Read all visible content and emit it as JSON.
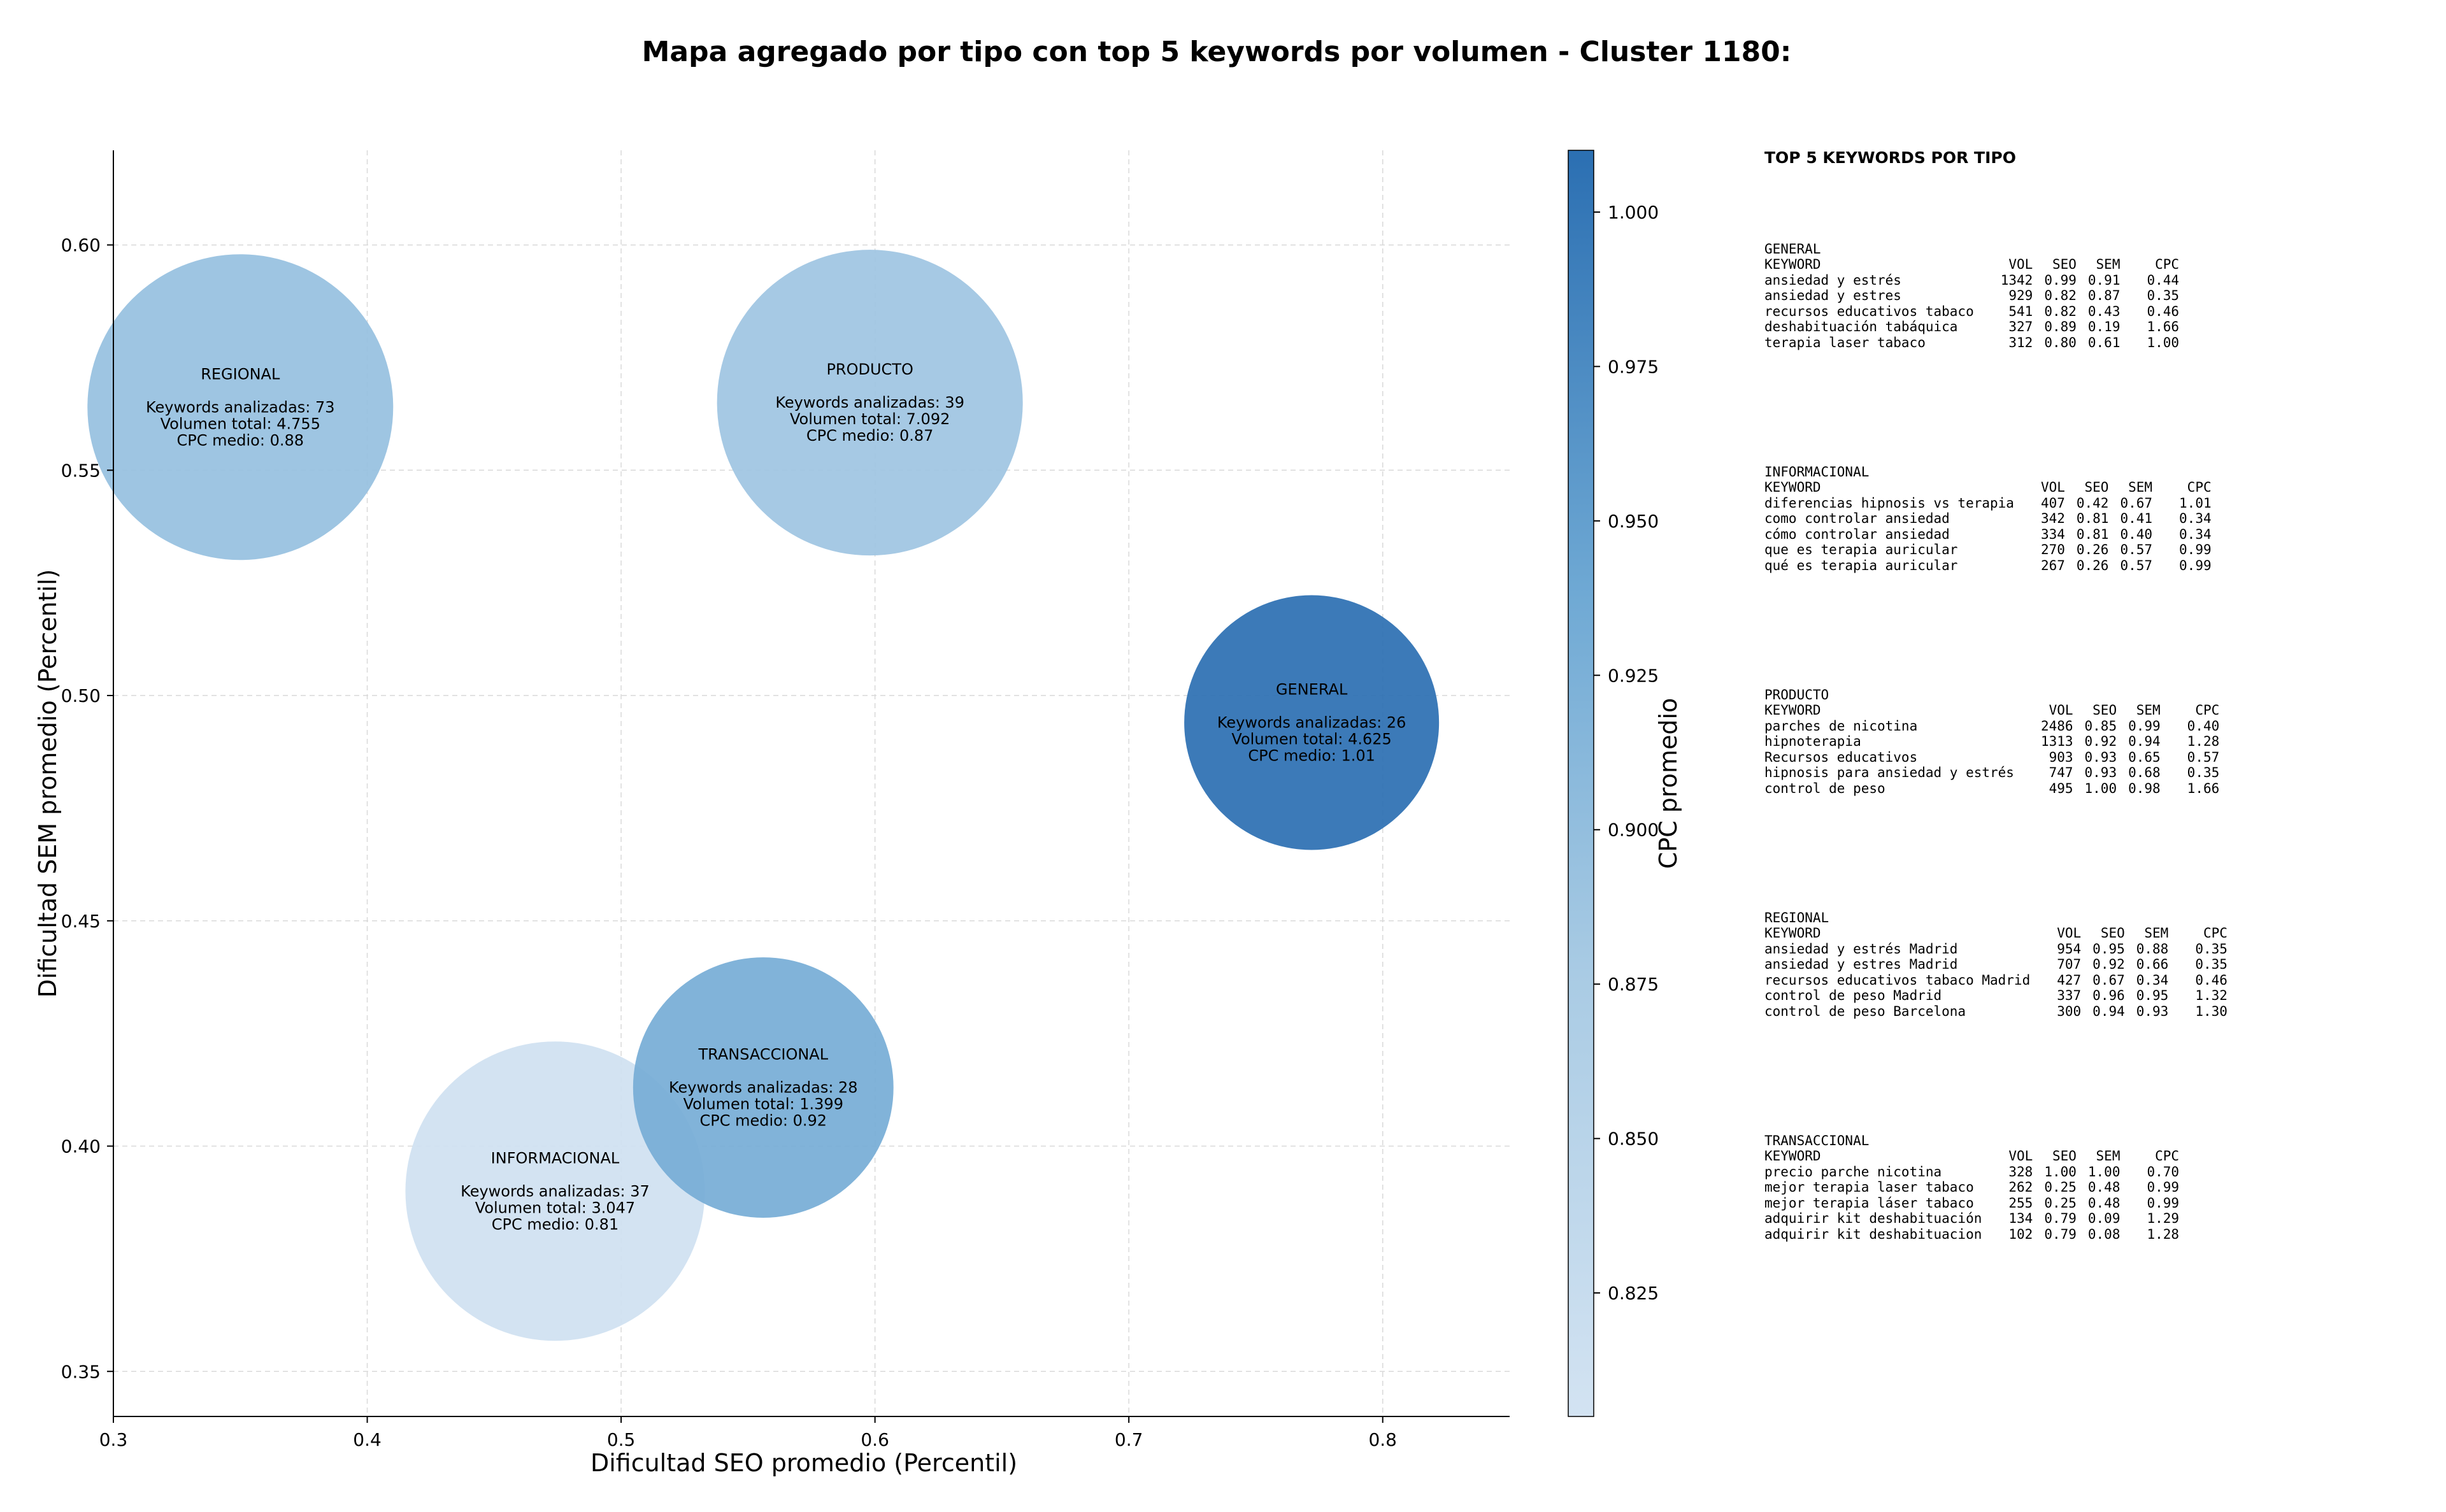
{
  "chart_data": {
    "type": "scatter",
    "title": "Mapa agregado por tipo con top 5 keywords por volumen - Cluster 1180:",
    "xlabel": "Dificultad SEO promedio (Percentil)",
    "ylabel": "Dificultad SEM promedio (Percentil)",
    "xlim": [
      0.3,
      0.85
    ],
    "ylim": [
      0.34,
      0.621
    ],
    "xticks": [
      "0.3",
      "0.4",
      "0.5",
      "0.6",
      "0.7",
      "0.8"
    ],
    "xtick_values": [
      0.3,
      0.4,
      0.5,
      0.6,
      0.7,
      0.8
    ],
    "yticks": [
      "0.35",
      "0.40",
      "0.45",
      "0.50",
      "0.55",
      "0.60"
    ],
    "ytick_values": [
      0.35,
      0.4,
      0.45,
      0.5,
      0.55,
      0.6
    ],
    "grid": true,
    "bubble_size_note": "bubble area proportional to keywords analyzed",
    "points": [
      {
        "name": "REGIONAL",
        "x": 0.35,
        "y": 0.564,
        "keywords": 73,
        "volumen": "4.755",
        "cpc": 0.88,
        "line1": "Keywords analizadas: 73",
        "line2": "Volumen total: 4.755",
        "line3": "CPC medio: 0.88"
      },
      {
        "name": "PRODUCTO",
        "x": 0.598,
        "y": 0.565,
        "keywords": 39,
        "volumen": "7.092",
        "cpc": 0.87,
        "line1": "Keywords analizadas: 39",
        "line2": "Volumen total: 7.092",
        "line3": "CPC medio: 0.87"
      },
      {
        "name": "GENERAL",
        "x": 0.772,
        "y": 0.494,
        "keywords": 26,
        "volumen": "4.625",
        "cpc": 1.01,
        "line1": "Keywords analizadas: 26",
        "line2": "Volumen total: 4.625",
        "line3": "CPC medio: 1.01"
      },
      {
        "name": "TRANSACCIONAL",
        "x": 0.556,
        "y": 0.413,
        "keywords": 28,
        "volumen": "1.399",
        "cpc": 0.92,
        "line1": "Keywords analizadas: 28",
        "line2": "Volumen total: 1.399",
        "line3": "CPC medio: 0.92"
      },
      {
        "name": "INFORMACIONAL",
        "x": 0.474,
        "y": 0.39,
        "keywords": 37,
        "volumen": "3.047",
        "cpc": 0.81,
        "line1": "Keywords analizadas: 37",
        "line2": "Volumen total: 3.047",
        "line3": "CPC medio: 0.81"
      }
    ],
    "colorbar": {
      "label": "CPC promedio",
      "range": [
        0.805,
        1.01
      ],
      "ticks": [
        "0.825",
        "0.850",
        "0.875",
        "0.900",
        "0.925",
        "0.950",
        "0.975",
        "1.000"
      ],
      "tick_values": [
        0.825,
        0.85,
        0.875,
        0.9,
        0.925,
        0.95,
        0.975,
        1.0
      ],
      "color_low": "#d3e3f2",
      "color_mid": "#6fa9d4",
      "color_high": "#2b6fb2"
    }
  },
  "panel": {
    "heading": "TOP 5 KEYWORDS POR TIPO",
    "header_cols": [
      "KEYWORD",
      "VOL",
      "SEO",
      "SEM",
      "CPC"
    ],
    "groups": [
      {
        "name": "GENERAL",
        "rows": [
          [
            "ansiedad y estrés",
            "1342",
            "0.99",
            "0.91",
            "0.44"
          ],
          [
            "ansiedad y estres",
            "929",
            "0.82",
            "0.87",
            "0.35"
          ],
          [
            "recursos educativos tabaco",
            "541",
            "0.82",
            "0.43",
            "0.46"
          ],
          [
            "deshabituación tabáquica",
            "327",
            "0.89",
            "0.19",
            "1.66"
          ],
          [
            "terapia laser tabaco",
            "312",
            "0.80",
            "0.61",
            "1.00"
          ]
        ]
      },
      {
        "name": "INFORMACIONAL",
        "rows": [
          [
            "diferencias hipnosis vs terapia",
            "407",
            "0.42",
            "0.67",
            "1.01"
          ],
          [
            "como controlar ansiedad",
            "342",
            "0.81",
            "0.41",
            "0.34"
          ],
          [
            "cómo controlar ansiedad",
            "334",
            "0.81",
            "0.40",
            "0.34"
          ],
          [
            "que es terapia auricular",
            "270",
            "0.26",
            "0.57",
            "0.99"
          ],
          [
            "qué es terapia auricular",
            "267",
            "0.26",
            "0.57",
            "0.99"
          ]
        ]
      },
      {
        "name": "PRODUCTO",
        "rows": [
          [
            "parches de nicotina",
            "2486",
            "0.85",
            "0.99",
            "0.40"
          ],
          [
            "hipnoterapia",
            "1313",
            "0.92",
            "0.94",
            "1.28"
          ],
          [
            "Recursos educativos",
            "903",
            "0.93",
            "0.65",
            "0.57"
          ],
          [
            "hipnosis para ansiedad y estrés",
            "747",
            "0.93",
            "0.68",
            "0.35"
          ],
          [
            "control de peso",
            "495",
            "1.00",
            "0.98",
            "1.66"
          ]
        ]
      },
      {
        "name": "REGIONAL",
        "rows": [
          [
            "ansiedad y estrés Madrid",
            "954",
            "0.95",
            "0.88",
            "0.35"
          ],
          [
            "ansiedad y estres Madrid",
            "707",
            "0.92",
            "0.66",
            "0.35"
          ],
          [
            "recursos educativos tabaco Madrid",
            "427",
            "0.67",
            "0.34",
            "0.46"
          ],
          [
            "control de peso Madrid",
            "337",
            "0.96",
            "0.95",
            "1.32"
          ],
          [
            "control de peso Barcelona",
            "300",
            "0.94",
            "0.93",
            "1.30"
          ]
        ]
      },
      {
        "name": "TRANSACCIONAL",
        "rows": [
          [
            "precio parche nicotina",
            "328",
            "1.00",
            "1.00",
            "0.70"
          ],
          [
            "mejor terapia laser tabaco",
            "262",
            "0.25",
            "0.48",
            "0.99"
          ],
          [
            "mejor terapia láser tabaco",
            "255",
            "0.25",
            "0.48",
            "0.99"
          ],
          [
            "adquirir kit deshabituación",
            "134",
            "0.79",
            "0.09",
            "1.29"
          ],
          [
            "adquirir kit deshabituacion",
            "102",
            "0.79",
            "0.08",
            "1.28"
          ]
        ]
      }
    ]
  }
}
